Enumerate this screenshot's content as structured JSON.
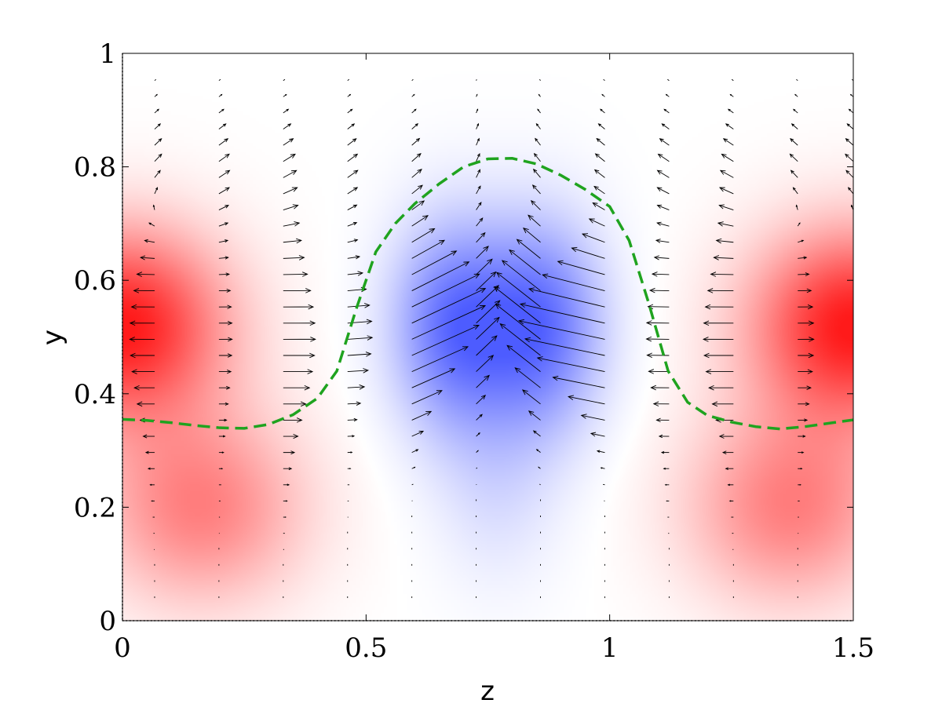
{
  "chart_data": {
    "type": "heatmap",
    "title": "",
    "xlabel": "z",
    "ylabel": "y",
    "xlim": [
      0,
      1.5
    ],
    "ylim": [
      0,
      1
    ],
    "x_ticks": [
      {
        "value": 0,
        "label": "0"
      },
      {
        "value": 0.5,
        "label": "0.5"
      },
      {
        "value": 1,
        "label": "1"
      },
      {
        "value": 1.5,
        "label": "1.5"
      }
    ],
    "y_ticks": [
      {
        "value": 0,
        "label": "0"
      },
      {
        "value": 0.2,
        "label": "0.2"
      },
      {
        "value": 0.4,
        "label": "0.4"
      },
      {
        "value": 0.6,
        "label": "0.6"
      },
      {
        "value": 0.8,
        "label": "0.8"
      },
      {
        "value": 1,
        "label": "1"
      }
    ],
    "colormap": {
      "positive": "#ff1a1a",
      "negative": "#4d5cff",
      "zero": "#ffffff"
    },
    "field_peaks": [
      {
        "z": 0.0,
        "y": 0.52,
        "sign": 1,
        "amplitude": 1.0
      },
      {
        "z": 1.5,
        "y": 0.52,
        "sign": 1,
        "amplitude": 1.0
      },
      {
        "z": 0.16,
        "y": 0.2,
        "sign": 1,
        "amplitude": 0.55
      },
      {
        "z": 1.37,
        "y": 0.2,
        "sign": 1,
        "amplitude": 0.55
      },
      {
        "z": 0.68,
        "y": 0.52,
        "sign": -1,
        "amplitude": 0.85
      },
      {
        "z": 0.86,
        "y": 0.52,
        "sign": -1,
        "amplitude": 0.85
      },
      {
        "z": 0.77,
        "y": 0.25,
        "sign": -1,
        "amplitude": 0.2
      }
    ],
    "quiver": {
      "color": "#000000",
      "column_z": [
        0.066,
        0.198,
        0.33,
        0.462,
        0.594,
        0.726,
        0.858,
        0.99,
        1.122,
        1.254,
        1.386,
        1.5
      ]
    },
    "interface_line": {
      "color": "#1fa31f",
      "style": "dashed",
      "x": [
        0.0,
        0.05,
        0.1,
        0.15,
        0.2,
        0.25,
        0.3,
        0.35,
        0.4,
        0.44,
        0.48,
        0.52,
        0.56,
        0.6,
        0.65,
        0.7,
        0.75,
        0.8,
        0.85,
        0.9,
        0.95,
        1.0,
        1.04,
        1.08,
        1.12,
        1.16,
        1.2,
        1.25,
        1.3,
        1.35,
        1.4,
        1.45,
        1.5
      ],
      "y": [
        0.355,
        0.353,
        0.349,
        0.344,
        0.34,
        0.339,
        0.346,
        0.363,
        0.392,
        0.44,
        0.55,
        0.65,
        0.7,
        0.735,
        0.77,
        0.8,
        0.814,
        0.815,
        0.805,
        0.785,
        0.76,
        0.73,
        0.67,
        0.56,
        0.44,
        0.385,
        0.362,
        0.35,
        0.342,
        0.338,
        0.342,
        0.348,
        0.354
      ]
    }
  }
}
